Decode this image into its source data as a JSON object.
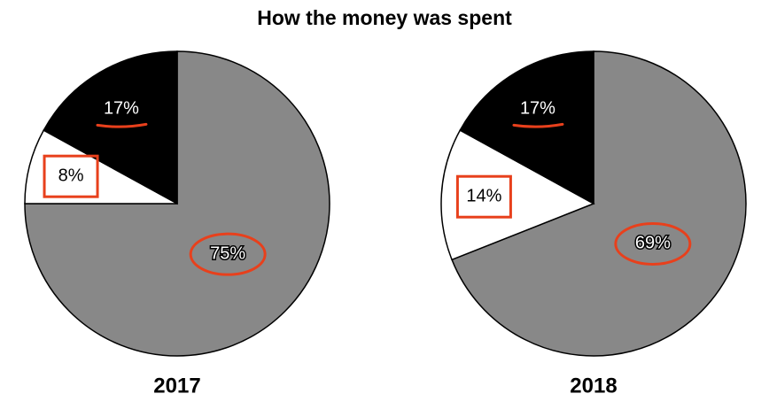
{
  "title": "How the money was spent",
  "chart_data": [
    {
      "type": "pie",
      "title": "2017",
      "values": [
        75,
        8,
        17
      ],
      "value_labels": [
        "75%",
        "8%",
        "17%"
      ],
      "colors": [
        "#888888",
        "#ffffff",
        "#000000"
      ]
    },
    {
      "type": "pie",
      "title": "2018",
      "values": [
        69,
        14,
        17
      ],
      "value_labels": [
        "69%",
        "14%",
        "17%"
      ],
      "colors": [
        "#888888",
        "#ffffff",
        "#000000"
      ]
    }
  ]
}
